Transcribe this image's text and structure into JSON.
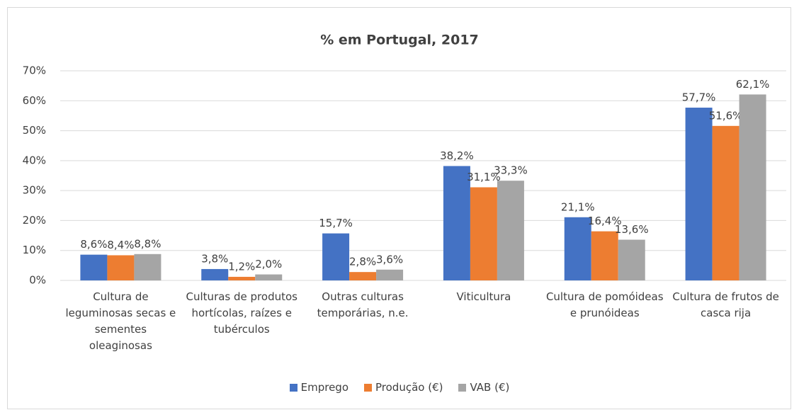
{
  "chart_data": {
    "type": "bar",
    "title": "% em Portugal, 2017",
    "categories": [
      "Cultura de leguminosas secas e sementes oleaginosas",
      "Culturas de produtos hortícolas, raízes e tubérculos",
      "Outras culturas temporárias, n.e.",
      "Viticultura",
      "Cultura de pomóideas e prunóideas",
      "Cultura de frutos de casca rija"
    ],
    "series": [
      {
        "name": "Emprego",
        "color": "#4472c4",
        "values": [
          8.6,
          3.8,
          15.7,
          38.2,
          21.1,
          57.7
        ],
        "value_labels": [
          "8,6%",
          "3,8%",
          "15,7%",
          "38,2%",
          "21,1%",
          "57,7%"
        ]
      },
      {
        "name": "Produção (€)",
        "color": "#ed7d31",
        "values": [
          8.4,
          1.2,
          2.8,
          31.1,
          16.4,
          51.6
        ],
        "value_labels": [
          "8,4%",
          "1,2%",
          "2,8%",
          "31,1%",
          "16,4%",
          "51,6%"
        ]
      },
      {
        "name": "VAB (€)",
        "color": "#a5a5a5",
        "values": [
          8.8,
          2.0,
          3.6,
          33.3,
          13.6,
          62.1
        ],
        "value_labels": [
          "8,8%",
          "2,0%",
          "3,6%",
          "33,3%",
          "13,6%",
          "62,1%"
        ]
      }
    ],
    "ylim": [
      0,
      70
    ],
    "yticks": [
      {
        "value": 0,
        "label": "0%"
      },
      {
        "value": 10,
        "label": "10%"
      },
      {
        "value": 20,
        "label": "20%"
      },
      {
        "value": 30,
        "label": "30%"
      },
      {
        "value": 40,
        "label": "40%"
      },
      {
        "value": 50,
        "label": "50%"
      },
      {
        "value": 60,
        "label": "60%"
      },
      {
        "value": 70,
        "label": "70%"
      }
    ],
    "grid": true,
    "legend": "bottom"
  }
}
